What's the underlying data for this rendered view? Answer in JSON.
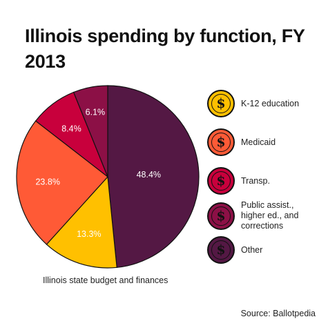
{
  "chart_data": {
    "type": "pie",
    "title": "Illinois spending by function, FY 2013",
    "subtitle": "Illinois state budget and finances",
    "source": "Source: Ballotpedia",
    "slices": [
      {
        "label": "K-12 education",
        "value": 13.3,
        "display": "13.3%",
        "color": "#FFC000"
      },
      {
        "label": "Medicaid",
        "value": 23.8,
        "display": "23.8%",
        "color": "#FF5A36"
      },
      {
        "label": "Transp.",
        "value": 8.4,
        "display": "8.4%",
        "color": "#C8003C"
      },
      {
        "label": "Public assist., higher ed., and corrections",
        "value": 6.1,
        "display": "6.1%",
        "color": "#8C1046"
      },
      {
        "label": "Other",
        "value": 48.4,
        "display": "48.4%",
        "color": "#541844"
      }
    ],
    "legend_position": "right",
    "coin_icon": "dollar-coin-icon"
  }
}
